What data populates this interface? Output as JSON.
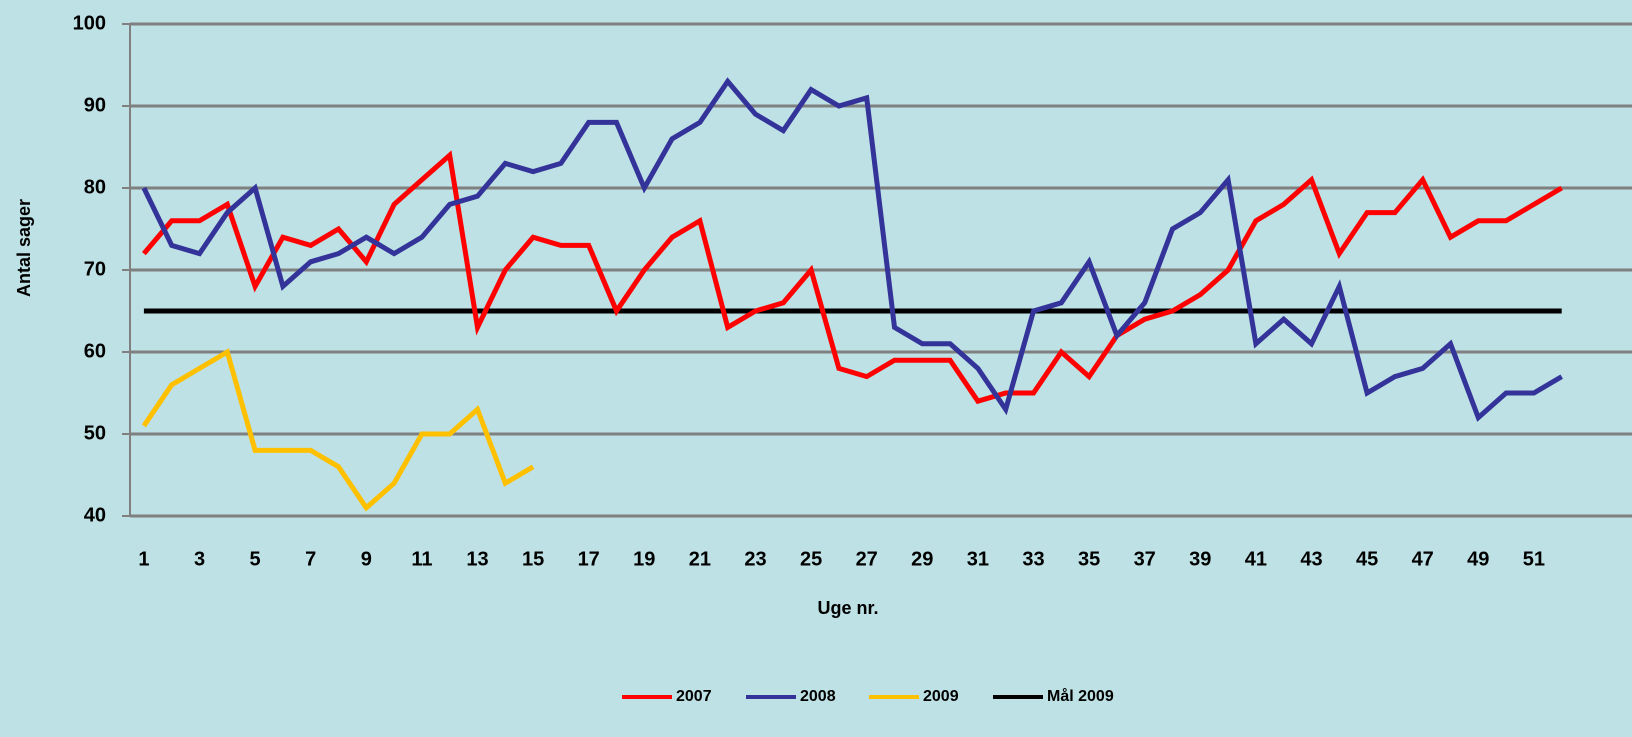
{
  "chart_data": {
    "type": "line",
    "xlabel": "Uge nr.",
    "ylabel": "Antal sager",
    "categories": [
      1,
      null,
      3,
      null,
      5,
      null,
      7,
      null,
      9,
      null,
      11,
      null,
      13,
      null,
      15,
      null,
      17,
      null,
      19,
      null,
      21,
      null,
      23,
      null,
      25,
      null,
      27,
      null,
      29,
      null,
      31,
      null,
      33,
      null,
      35,
      null,
      37,
      null,
      39,
      null,
      41,
      null,
      43,
      null,
      45,
      null,
      47,
      null,
      49,
      null,
      51,
      null
    ],
    "series": [
      {
        "name": "2007",
        "color": "#ff0000",
        "values": [
          72,
          76,
          76,
          78,
          68,
          74,
          73,
          75,
          71,
          78,
          81,
          84,
          63,
          70,
          74,
          73,
          73,
          65,
          70,
          74,
          76,
          63,
          65,
          66,
          70,
          58,
          57,
          59,
          59,
          59,
          54,
          55,
          55,
          60,
          57,
          62,
          64,
          65,
          67,
          70,
          76,
          78,
          81,
          72,
          77,
          77,
          81,
          74,
          76,
          76,
          78,
          80
        ]
      },
      {
        "name": "2008",
        "color": "#333399",
        "values": [
          80,
          73,
          72,
          77,
          80,
          68,
          71,
          72,
          74,
          72,
          74,
          78,
          79,
          83,
          82,
          83,
          88,
          88,
          80,
          86,
          88,
          93,
          89,
          87,
          92,
          90,
          91,
          63,
          61,
          61,
          58,
          53,
          65,
          66,
          71,
          62,
          66,
          75,
          77,
          81,
          61,
          64,
          61,
          68,
          55,
          57,
          58,
          61,
          52,
          55,
          55,
          57
        ]
      },
      {
        "name": "2009",
        "color": "#ffc000",
        "values": [
          51,
          56,
          58,
          60,
          48,
          48,
          48,
          46,
          41,
          44,
          50,
          50,
          53,
          44,
          46,
          null,
          null,
          null,
          null,
          null,
          null,
          null,
          null,
          null,
          null,
          null,
          null,
          null,
          null,
          null,
          null,
          null,
          null,
          null,
          null,
          null,
          null,
          null,
          null,
          null,
          null,
          null,
          null,
          null,
          null,
          null,
          null,
          null,
          null,
          null,
          null,
          null
        ]
      },
      {
        "name": "Mål 2009",
        "color": "#000000",
        "values": [
          65,
          65,
          65,
          65,
          65,
          65,
          65,
          65,
          65,
          65,
          65,
          65,
          65,
          65,
          65,
          65,
          65,
          65,
          65,
          65,
          65,
          65,
          65,
          65,
          65,
          65,
          65,
          65,
          65,
          65,
          65,
          65,
          65,
          65,
          65,
          65,
          65,
          65,
          65,
          65,
          65,
          65,
          65,
          65,
          65,
          65,
          65,
          65,
          65,
          65,
          65,
          65
        ]
      }
    ],
    "ylim": [
      40,
      100
    ],
    "yticks": [
      40,
      50,
      60,
      70,
      80,
      90,
      100
    ],
    "grid": true,
    "legend": "bottom"
  }
}
